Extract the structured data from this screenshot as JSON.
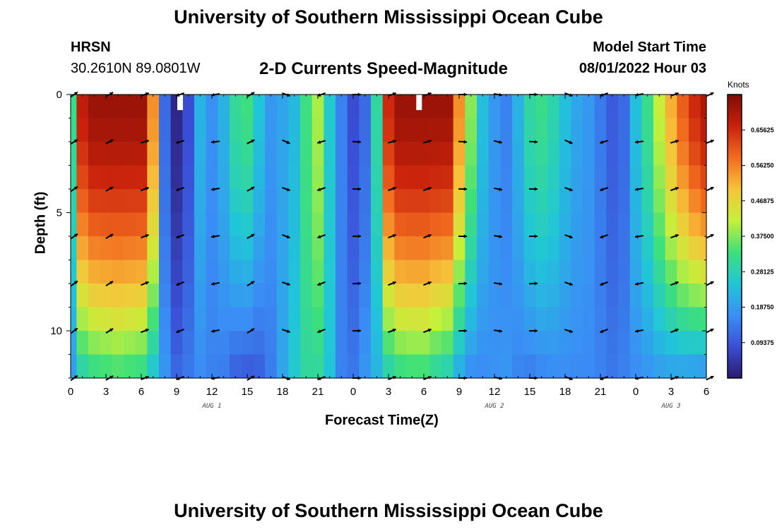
{
  "header": {
    "title": "University of Southern Mississippi Ocean Cube",
    "station": "HRSN",
    "coords": "30.2610N  89.0801W",
    "subtitle": "2-D Currents Speed-Magnitude",
    "model_start_label": "Model Start Time",
    "model_start_value": "08/01/2022 Hour 03"
  },
  "footer": {
    "title_repeat": "University of Southern Mississippi Ocean Cube"
  },
  "colors": {
    "scale": [
      "#2b1a6e",
      "#3a4fd6",
      "#3a8ff5",
      "#20c6d8",
      "#3ee07a",
      "#c6f03a",
      "#f7c33a",
      "#f26b1e",
      "#c8210c",
      "#7e0c04"
    ],
    "frame": "#000000",
    "arrow": "#000000",
    "missing": "#ffffff"
  },
  "chart_data": {
    "type": "heatmap",
    "title": "2-D Currents Speed-Magnitude",
    "xlabel": "Forecast Time(Z)",
    "ylabel": "Depth (ft)",
    "x_ticks": [
      "0",
      "3",
      "6",
      "9",
      "12",
      "15",
      "18",
      "21",
      "0",
      "3",
      "6",
      "9",
      "12",
      "15",
      "18",
      "21",
      "0",
      "3",
      "6"
    ],
    "x_range_hours": [
      0,
      54
    ],
    "date_labels": [
      {
        "text": "AUG 1",
        "hour": 12
      },
      {
        "text": "AUG 2",
        "hour": 36
      },
      {
        "text": "AUG 3",
        "hour": 51
      }
    ],
    "y_ticks": [
      "0",
      "5",
      "10"
    ],
    "y_tick_values": [
      0,
      5,
      10
    ],
    "y_range_ft": [
      0,
      12
    ],
    "colorbar": {
      "unit": "Knots",
      "range": [
        0,
        0.75
      ],
      "tick_labels": [
        "0.65625",
        "0.56250",
        "0.46875",
        "0.37500",
        "0.28125",
        "0.18750",
        "0.09375"
      ],
      "tick_values": [
        0.65625,
        0.5625,
        0.46875,
        0.375,
        0.28125,
        0.1875,
        0.09375
      ]
    },
    "profile_hours": [
      0,
      1,
      2,
      3,
      4,
      5,
      6,
      7,
      8,
      9,
      10,
      11,
      12,
      13,
      14,
      15,
      16,
      17,
      18,
      19,
      20,
      21,
      22,
      23,
      24,
      25,
      26,
      27,
      28,
      29,
      30,
      31,
      32,
      33,
      34,
      35,
      36,
      37,
      38,
      39,
      40,
      41,
      42,
      43,
      44,
      45,
      46,
      47,
      48,
      49,
      50,
      51,
      52,
      53,
      54
    ],
    "surface_speed_knots": [
      0.32,
      0.68,
      0.72,
      0.72,
      0.72,
      0.72,
      0.72,
      0.55,
      0.12,
      0.02,
      0.08,
      0.22,
      0.17,
      0.22,
      0.31,
      0.33,
      0.25,
      0.18,
      0.2,
      0.23,
      0.33,
      0.4,
      0.26,
      0.15,
      0.08,
      0.12,
      0.3,
      0.66,
      0.72,
      0.72,
      0.72,
      0.72,
      0.72,
      0.55,
      0.38,
      0.24,
      0.18,
      0.15,
      0.22,
      0.3,
      0.32,
      0.29,
      0.24,
      0.2,
      0.18,
      0.14,
      0.1,
      0.12,
      0.24,
      0.32,
      0.42,
      0.52,
      0.6,
      0.66,
      0.7
    ],
    "bottom_speed_knots": [
      0.18,
      0.27,
      0.3,
      0.31,
      0.32,
      0.31,
      0.3,
      0.24,
      0.18,
      0.12,
      0.14,
      0.16,
      0.15,
      0.14,
      0.1,
      0.09,
      0.1,
      0.14,
      0.2,
      0.26,
      0.3,
      0.3,
      0.25,
      0.15,
      0.14,
      0.18,
      0.22,
      0.27,
      0.3,
      0.31,
      0.31,
      0.28,
      0.26,
      0.2,
      0.16,
      0.16,
      0.17,
      0.18,
      0.15,
      0.14,
      0.15,
      0.16,
      0.16,
      0.16,
      0.16,
      0.15,
      0.14,
      0.15,
      0.16,
      0.17,
      0.18,
      0.18,
      0.18,
      0.17,
      0.16
    ],
    "missing_cells": [
      {
        "hour": 9.3,
        "depth_ft": 0.3
      },
      {
        "hour": 29.6,
        "depth_ft": 0.3
      }
    ],
    "arrow_depths_ft": [
      0,
      2,
      4,
      6,
      8,
      10,
      12
    ],
    "arrow_hours": [
      0,
      3,
      6,
      9,
      12,
      15,
      18,
      21,
      24,
      27,
      30,
      33,
      36,
      39,
      42,
      45,
      48,
      51,
      54
    ],
    "arrow_direction_deg_by_hour": [
      35,
      30,
      20,
      200,
      190,
      30,
      -20,
      200,
      0,
      20,
      20,
      0,
      -10,
      0,
      -20,
      200,
      190,
      20,
      25
    ],
    "arrow_depth_correction": [
      0.0,
      1.8,
      0.6
    ]
  }
}
